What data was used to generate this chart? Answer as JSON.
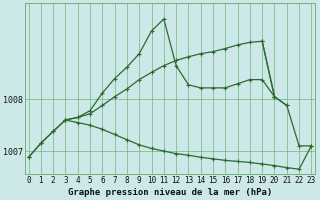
{
  "x": [
    0,
    1,
    2,
    3,
    4,
    5,
    6,
    7,
    8,
    9,
    10,
    11,
    12,
    13,
    14,
    15,
    16,
    17,
    18,
    19,
    20,
    21,
    22,
    23
  ],
  "line_peak": [
    1006.88,
    1007.15,
    1007.38,
    1007.6,
    1007.65,
    1007.78,
    1008.12,
    1008.4,
    1008.62,
    1008.88,
    1009.32,
    1009.55,
    1008.65,
    1008.28,
    1008.22,
    1008.22,
    1008.22,
    1008.3,
    1008.38,
    1008.38,
    1008.05,
    null,
    null,
    null
  ],
  "line_rise": [
    null,
    null,
    null,
    null,
    null,
    null,
    null,
    null,
    null,
    null,
    null,
    null,
    null,
    null,
    null,
    null,
    null,
    null,
    null,
    null,
    null,
    null,
    null,
    null
  ],
  "line_flat_rise": [
    1006.88,
    1007.15,
    1007.38,
    1007.6,
    1007.65,
    1007.72,
    1007.88,
    1008.05,
    1008.2,
    1008.38,
    1008.52,
    1008.65,
    1008.75,
    1008.82,
    1008.88,
    1008.92,
    1008.98,
    1009.05,
    1009.1,
    1009.12,
    1008.05,
    1007.88,
    null,
    null
  ],
  "line_decline": [
    null,
    null,
    null,
    1007.6,
    1007.55,
    1007.5,
    1007.42,
    1007.32,
    1007.22,
    1007.12,
    1007.05,
    1007.0,
    1006.95,
    1006.92,
    1006.88,
    1006.85,
    1006.82,
    1006.8,
    1006.78,
    1006.75,
    1006.72,
    1006.68,
    1006.65,
    1007.1
  ],
  "line_connect": [
    null,
    null,
    null,
    1007.6,
    null,
    null,
    null,
    null,
    null,
    null,
    null,
    null,
    null,
    null,
    null,
    null,
    null,
    null,
    null,
    1009.12,
    1008.05,
    1007.88,
    1007.1,
    1007.1
  ],
  "bg_color": "#cce8e8",
  "grid_color": "#66aa66",
  "line_color": "#2d6a2d",
  "title": "Graphe pression niveau de la mer (hPa)",
  "yticks": [
    1007,
    1008
  ],
  "ylim": [
    1006.55,
    1009.85
  ],
  "xlim": [
    -0.3,
    23.3
  ],
  "xticks": [
    0,
    1,
    2,
    3,
    4,
    5,
    6,
    7,
    8,
    9,
    10,
    11,
    12,
    13,
    14,
    15,
    16,
    17,
    18,
    19,
    20,
    21,
    22,
    23
  ],
  "figsize": [
    3.2,
    2.0
  ],
  "dpi": 100,
  "marker": "+",
  "ms": 3.5,
  "lw": 0.9,
  "tick_fontsize": 5.5,
  "label_fontsize": 6.5
}
